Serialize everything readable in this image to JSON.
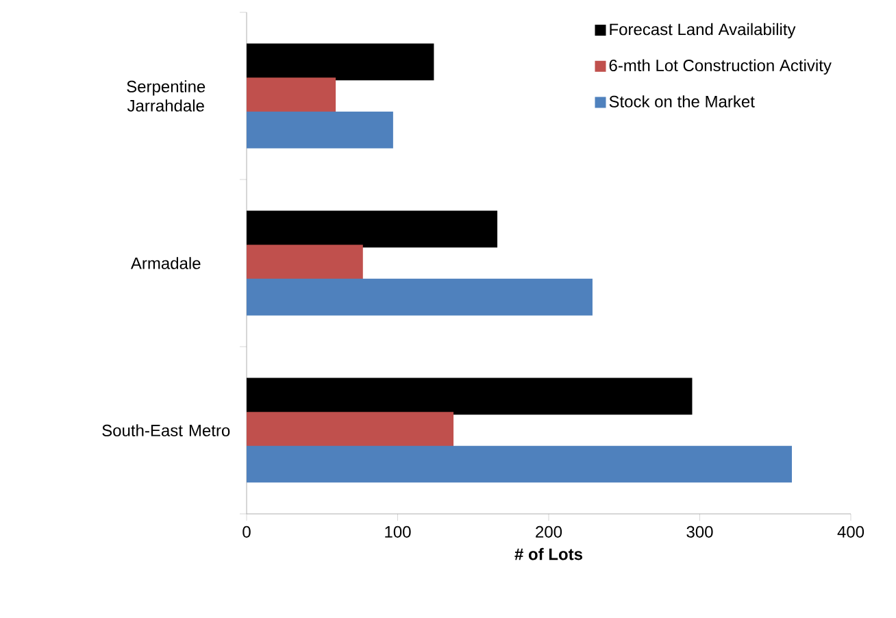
{
  "chart_data": {
    "type": "bar",
    "orientation": "horizontal",
    "xlabel": "# of Lots",
    "categories": [
      "Serpentine Jarrahdale",
      "Armadale",
      "South-East Metro"
    ],
    "series": [
      {
        "name": "Forecast Land Availability",
        "color": "#000000",
        "values": [
          124,
          166,
          295
        ]
      },
      {
        "name": "6-mth Lot Construction Activity",
        "color": "#c0504d",
        "values": [
          59,
          77,
          137
        ]
      },
      {
        "name": "Stock on the Market",
        "color": "#4f81bd",
        "values": [
          97,
          229,
          361
        ]
      }
    ],
    "xlim": [
      0,
      400
    ],
    "xticks": [
      0,
      100,
      200,
      300,
      400
    ],
    "legend": "top right",
    "grid": false
  }
}
